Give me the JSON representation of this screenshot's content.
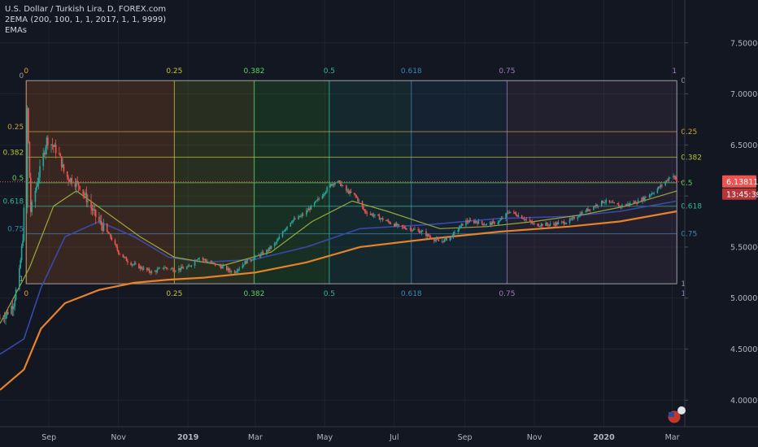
{
  "legend": {
    "symbol": "U.S. Dollar / Turkish Lira, D, FOREX.com",
    "indicator": "2EMA (200, 100, 1, 1, 2017, 1, 1, 9999)",
    "group": "EMAs"
  },
  "price_tag": {
    "price": "6.13811",
    "countdown": "13:45:39"
  },
  "colors": {
    "background": "#131722",
    "candle_up": "#26a69a",
    "candle_down": "#ef5350",
    "ema_200": "#e6822a",
    "ema_100": "#3949ab",
    "ema_50": "#9aa83a",
    "price_line": "#ef5350"
  },
  "chart_data": {
    "type": "candlestick",
    "x_axis_labels": [
      "Sep",
      "Nov",
      "2019",
      "Mar",
      "May",
      "Jul",
      "Sep",
      "Nov",
      "2020",
      "Mar"
    ],
    "y_axis_labels": [
      "7.50000",
      "7.00000",
      "6.50000",
      "6.00000",
      "5.50000",
      "5.00000",
      "4.50000",
      "4.00000"
    ],
    "ylim": [
      3.74,
      7.92
    ],
    "close_path": [
      [
        "2018-07-20",
        4.8
      ],
      [
        "2018-07-26",
        4.85
      ],
      [
        "2018-08-01",
        4.95
      ],
      [
        "2018-08-06",
        5.25
      ],
      [
        "2018-08-09",
        5.6
      ],
      [
        "2018-08-11",
        6.1
      ],
      [
        "2018-08-13",
        6.85
      ],
      [
        "2018-08-16",
        5.85
      ],
      [
        "2018-08-20",
        6.05
      ],
      [
        "2018-08-25",
        6.3
      ],
      [
        "2018-08-30",
        6.55
      ],
      [
        "2018-09-04",
        6.5
      ],
      [
        "2018-09-10",
        6.4
      ],
      [
        "2018-09-15",
        6.2
      ],
      [
        "2018-09-22",
        6.15
      ],
      [
        "2018-09-28",
        6.1
      ],
      [
        "2018-10-05",
        5.95
      ],
      [
        "2018-10-12",
        5.8
      ],
      [
        "2018-10-18",
        5.7
      ],
      [
        "2018-10-25",
        5.6
      ],
      [
        "2018-11-01",
        5.45
      ],
      [
        "2018-11-10",
        5.35
      ],
      [
        "2018-11-20",
        5.3
      ],
      [
        "2018-12-01",
        5.25
      ],
      [
        "2018-12-10",
        5.3
      ],
      [
        "2018-12-20",
        5.28
      ],
      [
        "2019-01-01",
        5.3
      ],
      [
        "2019-01-10",
        5.4
      ],
      [
        "2019-01-20",
        5.35
      ],
      [
        "2019-02-01",
        5.3
      ],
      [
        "2019-02-10",
        5.25
      ],
      [
        "2019-02-20",
        5.35
      ],
      [
        "2019-03-01",
        5.4
      ],
      [
        "2019-03-10",
        5.45
      ],
      [
        "2019-03-20",
        5.55
      ],
      [
        "2019-03-25",
        5.65
      ],
      [
        "2019-04-01",
        5.75
      ],
      [
        "2019-04-10",
        5.8
      ],
      [
        "2019-04-20",
        5.9
      ],
      [
        "2019-04-28",
        6.0
      ],
      [
        "2019-05-05",
        6.1
      ],
      [
        "2019-05-12",
        6.15
      ],
      [
        "2019-05-20",
        6.05
      ],
      [
        "2019-05-28",
        6.0
      ],
      [
        "2019-06-05",
        5.85
      ],
      [
        "2019-06-15",
        5.8
      ],
      [
        "2019-06-25",
        5.75
      ],
      [
        "2019-07-05",
        5.7
      ],
      [
        "2019-07-15",
        5.68
      ],
      [
        "2019-07-25",
        5.65
      ],
      [
        "2019-08-01",
        5.6
      ],
      [
        "2019-08-10",
        5.55
      ],
      [
        "2019-08-20",
        5.6
      ],
      [
        "2019-09-01",
        5.75
      ],
      [
        "2019-09-10",
        5.75
      ],
      [
        "2019-09-20",
        5.72
      ],
      [
        "2019-10-01",
        5.75
      ],
      [
        "2019-10-10",
        5.85
      ],
      [
        "2019-10-20",
        5.8
      ],
      [
        "2019-11-01",
        5.72
      ],
      [
        "2019-11-15",
        5.72
      ],
      [
        "2019-12-01",
        5.75
      ],
      [
        "2019-12-15",
        5.85
      ],
      [
        "2020-01-01",
        5.95
      ],
      [
        "2020-01-15",
        5.9
      ],
      [
        "2020-02-01",
        5.95
      ],
      [
        "2020-02-15",
        6.05
      ],
      [
        "2020-02-25",
        6.15
      ],
      [
        "2020-03-01",
        6.22
      ],
      [
        "2020-03-05",
        6.14
      ]
    ],
    "ema_200_path": [
      [
        "2018-07-20",
        4.1
      ],
      [
        "2018-08-10",
        4.3
      ],
      [
        "2018-08-25",
        4.7
      ],
      [
        "2018-09-15",
        4.95
      ],
      [
        "2018-10-15",
        5.08
      ],
      [
        "2018-11-15",
        5.15
      ],
      [
        "2018-12-15",
        5.18
      ],
      [
        "2019-01-15",
        5.2
      ],
      [
        "2019-03-01",
        5.25
      ],
      [
        "2019-04-15",
        5.35
      ],
      [
        "2019-06-01",
        5.5
      ],
      [
        "2019-08-01",
        5.58
      ],
      [
        "2019-10-01",
        5.65
      ],
      [
        "2019-12-01",
        5.7
      ],
      [
        "2020-01-15",
        5.75
      ],
      [
        "2020-03-05",
        5.85
      ]
    ],
    "ema_100_path": [
      [
        "2018-07-20",
        4.45
      ],
      [
        "2018-08-10",
        4.6
      ],
      [
        "2018-08-25",
        5.1
      ],
      [
        "2018-09-15",
        5.6
      ],
      [
        "2018-10-15",
        5.75
      ],
      [
        "2018-11-15",
        5.6
      ],
      [
        "2018-12-15",
        5.4
      ],
      [
        "2019-01-15",
        5.35
      ],
      [
        "2019-03-01",
        5.38
      ],
      [
        "2019-04-15",
        5.5
      ],
      [
        "2019-06-01",
        5.68
      ],
      [
        "2019-08-01",
        5.72
      ],
      [
        "2019-10-01",
        5.78
      ],
      [
        "2019-12-01",
        5.8
      ],
      [
        "2020-01-15",
        5.85
      ],
      [
        "2020-03-05",
        5.95
      ]
    ],
    "ema_50_path": [
      [
        "2018-07-20",
        4.75
      ],
      [
        "2018-08-15",
        5.3
      ],
      [
        "2018-09-05",
        5.9
      ],
      [
        "2018-09-25",
        6.05
      ],
      [
        "2018-10-20",
        5.85
      ],
      [
        "2018-11-20",
        5.6
      ],
      [
        "2018-12-20",
        5.4
      ],
      [
        "2019-02-01",
        5.32
      ],
      [
        "2019-03-15",
        5.45
      ],
      [
        "2019-04-20",
        5.75
      ],
      [
        "2019-05-25",
        5.95
      ],
      [
        "2019-06-25",
        5.85
      ],
      [
        "2019-08-10",
        5.68
      ],
      [
        "2019-09-20",
        5.7
      ],
      [
        "2019-11-01",
        5.75
      ],
      [
        "2019-12-15",
        5.82
      ],
      [
        "2020-01-20",
        5.9
      ],
      [
        "2020-03-05",
        6.05
      ]
    ],
    "fib_price_levels": [
      {
        "label": "0",
        "price": 7.13
      },
      {
        "label": "0.25",
        "price": 6.63
      },
      {
        "label": "0.382",
        "price": 6.38
      },
      {
        "label": "0.5",
        "price": 6.13
      },
      {
        "label": "0.618",
        "price": 5.9
      },
      {
        "label": "0.75",
        "price": 5.63
      },
      {
        "label": "1",
        "price": 5.14
      }
    ],
    "fib_time_zones": [
      {
        "label": "0",
        "date": "2018-08-12"
      },
      {
        "label": "0.25",
        "date": "2018-12-20"
      },
      {
        "label": "0.382",
        "date": "2019-02-28"
      },
      {
        "label": "0.5",
        "date": "2019-05-05"
      },
      {
        "label": "0.618",
        "date": "2019-07-16"
      },
      {
        "label": "0.75",
        "date": "2019-10-08"
      },
      {
        "label": "1",
        "date": "2020-03-05"
      }
    ]
  }
}
